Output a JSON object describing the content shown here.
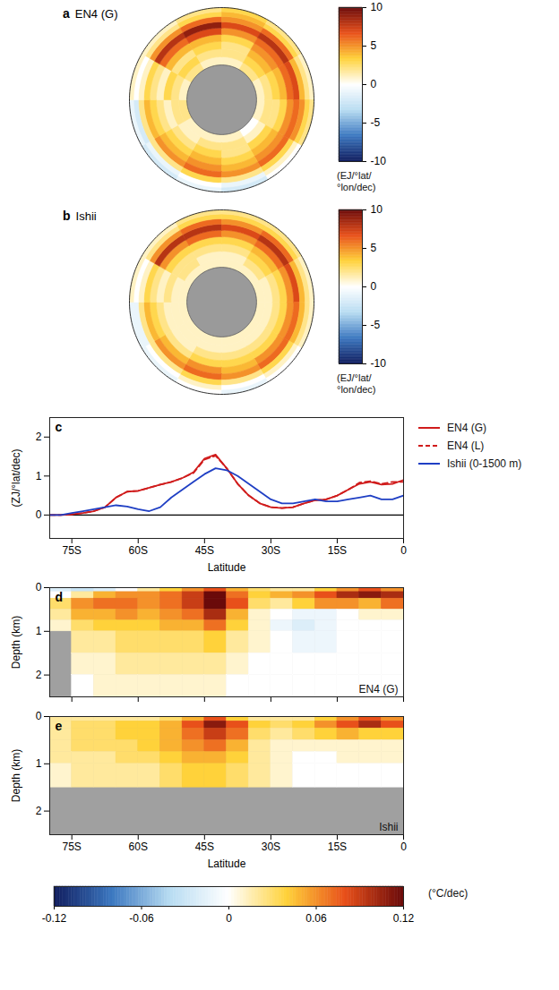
{
  "chart_data": [
    {
      "type": "map",
      "panel": "a",
      "title": "EN4 (G)",
      "lat_edges": [
        -70,
        -65,
        -60,
        -55,
        -50,
        -45,
        -40,
        -35,
        -30,
        -25
      ],
      "lon_edges": [
        -180,
        -150,
        -120,
        -90,
        -60,
        -30,
        0,
        30,
        60,
        90,
        120,
        150,
        180
      ],
      "values": [
        [
          1,
          1,
          2,
          1,
          2,
          1,
          1,
          2,
          1,
          1,
          0,
          1
        ],
        [
          2,
          1,
          2,
          2,
          3,
          2,
          2,
          3,
          2,
          2,
          1,
          2
        ],
        [
          3,
          2,
          1,
          3,
          2,
          3,
          2,
          4,
          3,
          2,
          3,
          2
        ],
        [
          4,
          3,
          2,
          1,
          4,
          4,
          3,
          5,
          4,
          3,
          4,
          3
        ],
        [
          5,
          4,
          3,
          2,
          6,
          7,
          5,
          6,
          6,
          5,
          5,
          4
        ],
        [
          6,
          5,
          4,
          3,
          8,
          9,
          7,
          8,
          7,
          6,
          6,
          5
        ],
        [
          3,
          2,
          2,
          1,
          5,
          6,
          5,
          6,
          4,
          5,
          3,
          2
        ],
        [
          0,
          -1,
          -2,
          0,
          2,
          3,
          4,
          3,
          2,
          3,
          1,
          -1
        ],
        [
          -1,
          -2,
          -1,
          1,
          1,
          2,
          3,
          2,
          1,
          2,
          0,
          -2
        ]
      ],
      "colorbar": {
        "lim": [
          -10,
          10
        ],
        "ticks": [
          -10,
          -5,
          0,
          5,
          10
        ],
        "label": "(EJ/°lat/°lon/dec)"
      }
    },
    {
      "type": "map",
      "panel": "b",
      "title": "Ishii",
      "lat_edges": [
        -70,
        -65,
        -60,
        -55,
        -50,
        -45,
        -40,
        -35,
        -30,
        -25
      ],
      "lon_edges": [
        -180,
        -150,
        -120,
        -90,
        -60,
        -30,
        0,
        30,
        60,
        90,
        120,
        150,
        180
      ],
      "values": [
        [
          1,
          1,
          1,
          1,
          1,
          1,
          1,
          1,
          1,
          1,
          1,
          1
        ],
        [
          1,
          1,
          1,
          1,
          2,
          1,
          1,
          2,
          1,
          1,
          1,
          1
        ],
        [
          2,
          1,
          1,
          2,
          2,
          2,
          2,
          3,
          2,
          2,
          2,
          2
        ],
        [
          3,
          2,
          2,
          1,
          3,
          3,
          3,
          4,
          3,
          3,
          3,
          3
        ],
        [
          5,
          4,
          3,
          2,
          5,
          6,
          5,
          6,
          5,
          5,
          5,
          4
        ],
        [
          6,
          5,
          4,
          3,
          8,
          8,
          7,
          8,
          7,
          6,
          6,
          5
        ],
        [
          3,
          2,
          2,
          1,
          5,
          6,
          5,
          6,
          4,
          4,
          3,
          2
        ],
        [
          1,
          0,
          -1,
          0,
          2,
          3,
          3,
          3,
          2,
          2,
          1,
          0
        ],
        [
          0,
          -1,
          -1,
          1,
          1,
          2,
          2,
          2,
          1,
          1,
          0,
          -1
        ]
      ],
      "colorbar": {
        "lim": [
          -10,
          10
        ],
        "ticks": [
          -10,
          -5,
          0,
          5,
          10
        ],
        "label": "(EJ/°lat/°lon/dec)"
      }
    },
    {
      "type": "line",
      "panel": "c",
      "xlabel": "Latitude",
      "ylabel": "(ZJ/°lat/dec)",
      "x": [
        -80,
        -77.5,
        -75,
        -72.5,
        -70,
        -67.5,
        -65,
        -62.5,
        -60,
        -57.5,
        -55,
        -52.5,
        -50,
        -47.5,
        -45,
        -42.5,
        -40,
        -37.5,
        -35,
        -32.5,
        -30,
        -27.5,
        -25,
        -22.5,
        -20,
        -17.5,
        -15,
        -12.5,
        -10,
        -7.5,
        -5,
        -2.5,
        0
      ],
      "series": [
        {
          "name": "EN4 (G)",
          "color": "#d01c1c",
          "line_style": "solid",
          "values": [
            0,
            0,
            0.02,
            0.05,
            0.1,
            0.2,
            0.45,
            0.6,
            0.62,
            0.7,
            0.78,
            0.85,
            0.95,
            1.1,
            1.45,
            1.55,
            1.2,
            0.8,
            0.5,
            0.3,
            0.2,
            0.18,
            0.2,
            0.3,
            0.38,
            0.4,
            0.5,
            0.65,
            0.8,
            0.85,
            0.78,
            0.8,
            0.9
          ]
        },
        {
          "name": "EN4 (L)",
          "color": "#d01c1c",
          "line_style": "dashed",
          "values": [
            0,
            0,
            0.02,
            0.05,
            0.1,
            0.2,
            0.45,
            0.6,
            0.62,
            0.7,
            0.78,
            0.85,
            0.95,
            1.08,
            1.42,
            1.52,
            1.2,
            0.8,
            0.5,
            0.3,
            0.2,
            0.18,
            0.2,
            0.3,
            0.38,
            0.4,
            0.5,
            0.65,
            0.83,
            0.87,
            0.8,
            0.85,
            0.85
          ]
        },
        {
          "name": "Ishii (0-1500 m)",
          "color": "#1f3fc4",
          "line_style": "solid",
          "values": [
            0,
            0,
            0.05,
            0.1,
            0.15,
            0.2,
            0.25,
            0.22,
            0.15,
            0.1,
            0.2,
            0.45,
            0.65,
            0.85,
            1.05,
            1.2,
            1.15,
            1.0,
            0.8,
            0.6,
            0.4,
            0.3,
            0.3,
            0.35,
            0.4,
            0.35,
            0.35,
            0.4,
            0.45,
            0.5,
            0.4,
            0.4,
            0.5
          ]
        }
      ],
      "xlim": [
        -80,
        0
      ],
      "xticks": [
        {
          "value": -75,
          "label": "75S"
        },
        {
          "value": -60,
          "label": "60S"
        },
        {
          "value": -45,
          "label": "45S"
        },
        {
          "value": -30,
          "label": "30S"
        },
        {
          "value": -15,
          "label": "15S"
        },
        0
      ],
      "ylim": [
        -0.6,
        2.5
      ],
      "yticks": [
        0,
        1,
        2
      ],
      "reference_line": 0,
      "legend": "right"
    },
    {
      "type": "heatmap",
      "panel": "d",
      "title": "EN4 (G)",
      "ylabel": "Depth (km)",
      "lat_edges": [
        -80,
        -75,
        -70,
        -65,
        -60,
        -55,
        -50,
        -45,
        -40,
        -35,
        -30,
        -25,
        -20,
        -15,
        -10,
        -5,
        0
      ],
      "depth_edges": [
        0,
        0.1,
        0.25,
        0.5,
        0.75,
        1,
        1.5,
        2,
        2.5
      ],
      "values": [
        [
          -0.02,
          -0.03,
          -0.02,
          0.0,
          0.02,
          0.04,
          0.06,
          0.08,
          0.05,
          0.03,
          0.02,
          0.02,
          0.04,
          0.06,
          0.08,
          0.06
        ],
        [
          0.0,
          0.02,
          0.05,
          0.06,
          0.06,
          0.07,
          0.09,
          0.12,
          0.07,
          0.04,
          0.05,
          0.06,
          0.08,
          0.1,
          0.11,
          0.1
        ],
        [
          0.03,
          0.06,
          0.07,
          0.07,
          0.06,
          0.07,
          0.09,
          0.12,
          0.08,
          0.03,
          0.02,
          0.04,
          0.06,
          0.06,
          0.05,
          0.07
        ],
        [
          0.02,
          0.05,
          0.05,
          0.06,
          0.05,
          0.06,
          0.07,
          0.1,
          0.05,
          0.01,
          0.0,
          -0.01,
          -0.01,
          0.0,
          0.01,
          0.01
        ],
        [
          0.01,
          0.03,
          0.04,
          0.04,
          0.04,
          0.05,
          0.05,
          0.07,
          0.04,
          0.01,
          -0.01,
          -0.02,
          -0.01,
          0.0,
          0.0,
          0.0
        ],
        [
          null,
          0.02,
          0.02,
          0.03,
          0.03,
          0.03,
          0.03,
          0.04,
          0.02,
          0.01,
          0.0,
          -0.01,
          -0.01,
          0.0,
          0.0,
          0.0
        ],
        [
          null,
          0.01,
          0.01,
          0.02,
          0.02,
          0.02,
          0.02,
          0.02,
          0.01,
          0.0,
          0.0,
          0.0,
          0.0,
          0.0,
          0.0,
          0.0
        ],
        [
          null,
          0.0,
          0.01,
          0.01,
          0.01,
          0.01,
          0.01,
          0.01,
          0.0,
          0.0,
          0.0,
          0.0,
          0.0,
          0.0,
          0.0,
          0.0
        ]
      ],
      "xlim": [
        -80,
        0
      ],
      "xticks": [
        {
          "value": -75,
          "label": "75S"
        },
        {
          "value": -60,
          "label": "60S"
        },
        {
          "value": -45,
          "label": "45S"
        },
        {
          "value": -30,
          "label": "30S"
        },
        {
          "value": -15,
          "label": "15S"
        },
        0
      ],
      "ylim": [
        0,
        2.5
      ],
      "yticks": [
        0,
        1,
        2
      ],
      "tick_labels": "y"
    },
    {
      "type": "heatmap",
      "panel": "e",
      "title": "Ishii",
      "xlabel": "Latitude",
      "ylabel": "Depth (km)",
      "lat_edges": [
        -80,
        -75,
        -70,
        -65,
        -60,
        -55,
        -50,
        -45,
        -40,
        -35,
        -30,
        -25,
        -20,
        -15,
        -10,
        -5,
        0
      ],
      "depth_edges": [
        0,
        0.1,
        0.25,
        0.5,
        0.75,
        1,
        1.5
      ],
      "values": [
        [
          0.02,
          0.02,
          0.02,
          0.02,
          0.02,
          0.03,
          0.05,
          0.08,
          0.04,
          0.02,
          0.02,
          0.02,
          0.04,
          0.06,
          0.08,
          0.06
        ],
        [
          0.02,
          0.03,
          0.03,
          0.04,
          0.04,
          0.05,
          0.08,
          0.11,
          0.08,
          0.04,
          0.03,
          0.04,
          0.06,
          0.08,
          0.1,
          0.08
        ],
        [
          0.02,
          0.03,
          0.03,
          0.04,
          0.04,
          0.05,
          0.07,
          0.09,
          0.07,
          0.03,
          0.02,
          0.03,
          0.04,
          0.05,
          0.04,
          0.04
        ],
        [
          0.02,
          0.03,
          0.03,
          0.03,
          0.04,
          0.05,
          0.06,
          0.07,
          0.05,
          0.02,
          0.01,
          0.01,
          0.01,
          0.01,
          0.01,
          0.01
        ],
        [
          0.02,
          0.02,
          0.02,
          0.03,
          0.03,
          0.04,
          0.05,
          0.05,
          0.04,
          0.02,
          0.01,
          0.0,
          0.0,
          0.01,
          0.01,
          0.01
        ],
        [
          0.01,
          0.02,
          0.02,
          0.02,
          0.02,
          0.03,
          0.04,
          0.04,
          0.03,
          0.02,
          0.01,
          0.0,
          0.0,
          0.0,
          0.0,
          0.0
        ]
      ],
      "xlim": [
        -80,
        0
      ],
      "xticks": [
        {
          "value": -75,
          "label": "75S"
        },
        {
          "value": -60,
          "label": "60S"
        },
        {
          "value": -45,
          "label": "45S"
        },
        {
          "value": -30,
          "label": "30S"
        },
        {
          "value": -15,
          "label": "15S"
        },
        0
      ],
      "ylim": [
        0,
        2.5
      ],
      "yticks": [
        0,
        1,
        2
      ]
    },
    {
      "type": "colorbar",
      "lim": [
        -0.12,
        0.12
      ],
      "ticks": [
        -0.12,
        -0.06,
        0,
        0.06,
        0.12
      ],
      "label": "(°C/dec)"
    }
  ]
}
